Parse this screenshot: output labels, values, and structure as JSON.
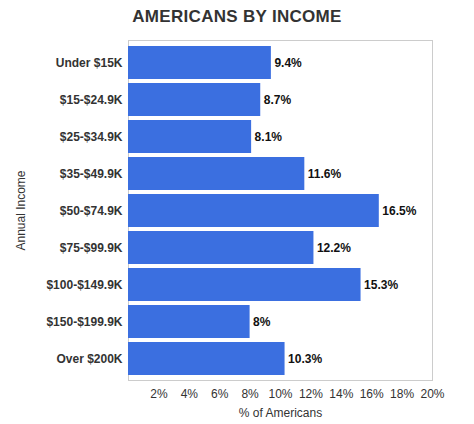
{
  "chart_data": {
    "type": "bar",
    "orientation": "horizontal",
    "title": "AMERICANS BY INCOME",
    "x_label": "% of Americans",
    "y_label": "Annual Income",
    "categories": [
      "Under $15K",
      "$15-$24.9K",
      "$25-$34.9K",
      "$35-$49.9K",
      "$50-$74.9K",
      "$75-$99.9K",
      "$100-$149.9K",
      "$150-$199.9K",
      "Over $200K"
    ],
    "values": [
      9.4,
      8.7,
      8.1,
      11.6,
      16.5,
      12.2,
      15.3,
      8,
      10.3
    ],
    "value_labels": [
      "9.4%",
      "8.7%",
      "8.1%",
      "11.6%",
      "16.5%",
      "12.2%",
      "15.3%",
      "8%",
      "10.3%"
    ],
    "data_labels": true,
    "color": "#3b6fe0",
    "xlim": [
      0,
      20
    ],
    "xticks": [
      {
        "value": 2,
        "label": "2%"
      },
      {
        "value": 4,
        "label": "4%"
      },
      {
        "value": 6,
        "label": "6%"
      },
      {
        "value": 8,
        "label": "8%"
      },
      {
        "value": 10,
        "label": "10%"
      },
      {
        "value": 12,
        "label": "12%"
      },
      {
        "value": 14,
        "label": "14%"
      },
      {
        "value": 16,
        "label": "16%"
      },
      {
        "value": 18,
        "label": "18%"
      },
      {
        "value": 20,
        "label": "20%"
      }
    ],
    "grid": false
  }
}
